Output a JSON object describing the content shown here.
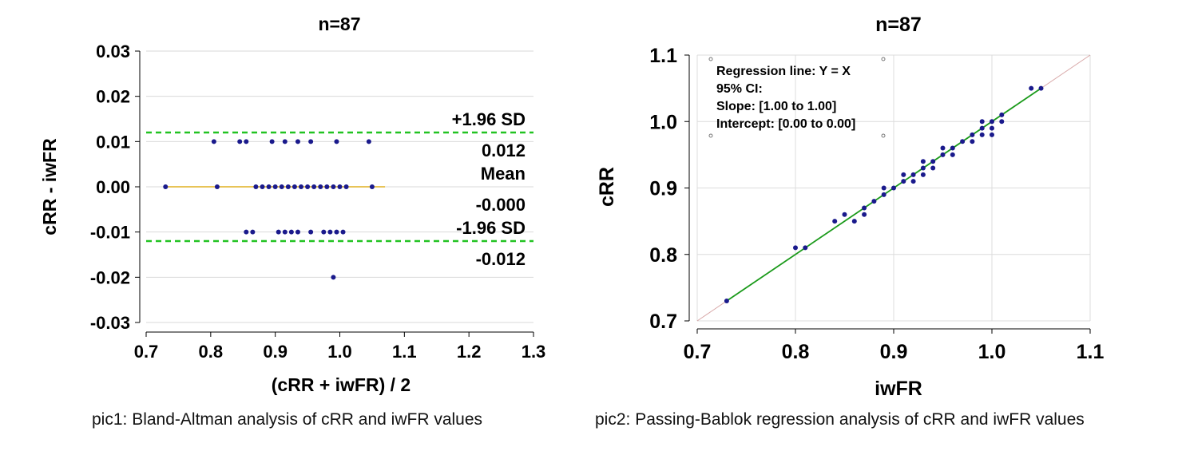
{
  "chart_data": [
    {
      "type": "scatter",
      "title": "n=87",
      "xlabel": "(cRR + iwFR) / 2",
      "ylabel": "cRR - iwFR",
      "xlim": [
        0.7,
        1.3
      ],
      "ylim": [
        -0.03,
        0.03
      ],
      "xticks": [
        "0.7",
        "0.8",
        "0.9",
        "1.0",
        "1.1",
        "1.2",
        "1.3"
      ],
      "yticks": [
        "0.03",
        "0.02",
        "0.01",
        "0.00",
        "-0.01",
        "-0.02",
        "-0.03"
      ],
      "grid": "horizontal",
      "reference_lines": [
        {
          "label": "+1.96 SD",
          "value_label": "0.012",
          "y": 0.012,
          "color": "#22c322",
          "style": "dashed"
        },
        {
          "label": "Mean",
          "value_label": "-0.000",
          "y": 0.0,
          "color": "#e0b020",
          "style": "solid"
        },
        {
          "label": "-1.96 SD",
          "value_label": "-0.012",
          "y": -0.012,
          "color": "#22c322",
          "style": "dashed"
        }
      ],
      "points": [
        {
          "x": 0.805,
          "y": 0.01
        },
        {
          "x": 0.845,
          "y": 0.01
        },
        {
          "x": 0.855,
          "y": 0.01
        },
        {
          "x": 0.895,
          "y": 0.01
        },
        {
          "x": 0.915,
          "y": 0.01
        },
        {
          "x": 0.935,
          "y": 0.01
        },
        {
          "x": 0.955,
          "y": 0.01
        },
        {
          "x": 0.995,
          "y": 0.01
        },
        {
          "x": 1.045,
          "y": 0.01
        },
        {
          "x": 0.73,
          "y": 0.0
        },
        {
          "x": 0.81,
          "y": 0.0
        },
        {
          "x": 0.87,
          "y": 0.0
        },
        {
          "x": 0.88,
          "y": 0.0
        },
        {
          "x": 0.89,
          "y": 0.0
        },
        {
          "x": 0.9,
          "y": 0.0
        },
        {
          "x": 0.91,
          "y": 0.0
        },
        {
          "x": 0.92,
          "y": 0.0
        },
        {
          "x": 0.93,
          "y": 0.0
        },
        {
          "x": 0.94,
          "y": 0.0
        },
        {
          "x": 0.95,
          "y": 0.0
        },
        {
          "x": 0.96,
          "y": 0.0
        },
        {
          "x": 0.97,
          "y": 0.0
        },
        {
          "x": 0.98,
          "y": 0.0
        },
        {
          "x": 0.99,
          "y": 0.0
        },
        {
          "x": 1.0,
          "y": 0.0
        },
        {
          "x": 1.01,
          "y": 0.0
        },
        {
          "x": 1.05,
          "y": 0.0
        },
        {
          "x": 0.855,
          "y": -0.01
        },
        {
          "x": 0.865,
          "y": -0.01
        },
        {
          "x": 0.905,
          "y": -0.01
        },
        {
          "x": 0.915,
          "y": -0.01
        },
        {
          "x": 0.925,
          "y": -0.01
        },
        {
          "x": 0.935,
          "y": -0.01
        },
        {
          "x": 0.955,
          "y": -0.01
        },
        {
          "x": 0.975,
          "y": -0.01
        },
        {
          "x": 0.985,
          "y": -0.01
        },
        {
          "x": 0.995,
          "y": -0.01
        },
        {
          "x": 1.005,
          "y": -0.01
        },
        {
          "x": 0.99,
          "y": -0.02
        }
      ],
      "point_color": "#1a1a8c",
      "caption": "pic1: Bland-Altman analysis of cRR and iwFR values"
    },
    {
      "type": "scatter",
      "title": "n=87",
      "xlabel": "iwFR",
      "ylabel": "cRR",
      "xlim": [
        0.7,
        1.1
      ],
      "ylim": [
        0.7,
        1.1
      ],
      "xticks": [
        "0.7",
        "0.8",
        "0.9",
        "1.0",
        "1.1"
      ],
      "yticks": [
        "1.1",
        "1.0",
        "0.9",
        "0.8",
        "0.7"
      ],
      "grid": "both",
      "annotation": [
        "Regression line: Y = X",
        "95% CI:",
        "Slope: [1.00 to 1.00]",
        "Intercept: [0.00 to 0.00]"
      ],
      "lines": [
        {
          "name": "identity",
          "from": [
            0.7,
            0.7
          ],
          "to": [
            1.1,
            1.1
          ],
          "color": "#d8a8a8"
        },
        {
          "name": "regression",
          "from": [
            0.73,
            0.73
          ],
          "to": [
            1.05,
            1.05
          ],
          "color": "#1a9a1a"
        }
      ],
      "points": [
        {
          "x": 0.73,
          "y": 0.73
        },
        {
          "x": 0.8,
          "y": 0.81
        },
        {
          "x": 0.81,
          "y": 0.81
        },
        {
          "x": 0.84,
          "y": 0.85
        },
        {
          "x": 0.85,
          "y": 0.86
        },
        {
          "x": 0.86,
          "y": 0.85
        },
        {
          "x": 0.87,
          "y": 0.86
        },
        {
          "x": 0.87,
          "y": 0.87
        },
        {
          "x": 0.88,
          "y": 0.88
        },
        {
          "x": 0.89,
          "y": 0.89
        },
        {
          "x": 0.89,
          "y": 0.9
        },
        {
          "x": 0.9,
          "y": 0.9
        },
        {
          "x": 0.91,
          "y": 0.91
        },
        {
          "x": 0.91,
          "y": 0.92
        },
        {
          "x": 0.92,
          "y": 0.91
        },
        {
          "x": 0.92,
          "y": 0.92
        },
        {
          "x": 0.93,
          "y": 0.92
        },
        {
          "x": 0.93,
          "y": 0.93
        },
        {
          "x": 0.93,
          "y": 0.94
        },
        {
          "x": 0.94,
          "y": 0.93
        },
        {
          "x": 0.94,
          "y": 0.94
        },
        {
          "x": 0.95,
          "y": 0.95
        },
        {
          "x": 0.95,
          "y": 0.96
        },
        {
          "x": 0.96,
          "y": 0.95
        },
        {
          "x": 0.96,
          "y": 0.96
        },
        {
          "x": 0.97,
          "y": 0.97
        },
        {
          "x": 0.98,
          "y": 0.97
        },
        {
          "x": 0.98,
          "y": 0.98
        },
        {
          "x": 0.99,
          "y": 0.98
        },
        {
          "x": 0.99,
          "y": 0.99
        },
        {
          "x": 0.99,
          "y": 1.0
        },
        {
          "x": 1.0,
          "y": 0.98
        },
        {
          "x": 1.0,
          "y": 0.99
        },
        {
          "x": 1.0,
          "y": 1.0
        },
        {
          "x": 1.01,
          "y": 1.0
        },
        {
          "x": 1.01,
          "y": 1.01
        },
        {
          "x": 1.04,
          "y": 1.05
        },
        {
          "x": 1.05,
          "y": 1.05
        }
      ],
      "point_color": "#1a1a8c",
      "caption": "pic2: Passing-Bablok regression analysis of cRR and iwFR values"
    }
  ]
}
